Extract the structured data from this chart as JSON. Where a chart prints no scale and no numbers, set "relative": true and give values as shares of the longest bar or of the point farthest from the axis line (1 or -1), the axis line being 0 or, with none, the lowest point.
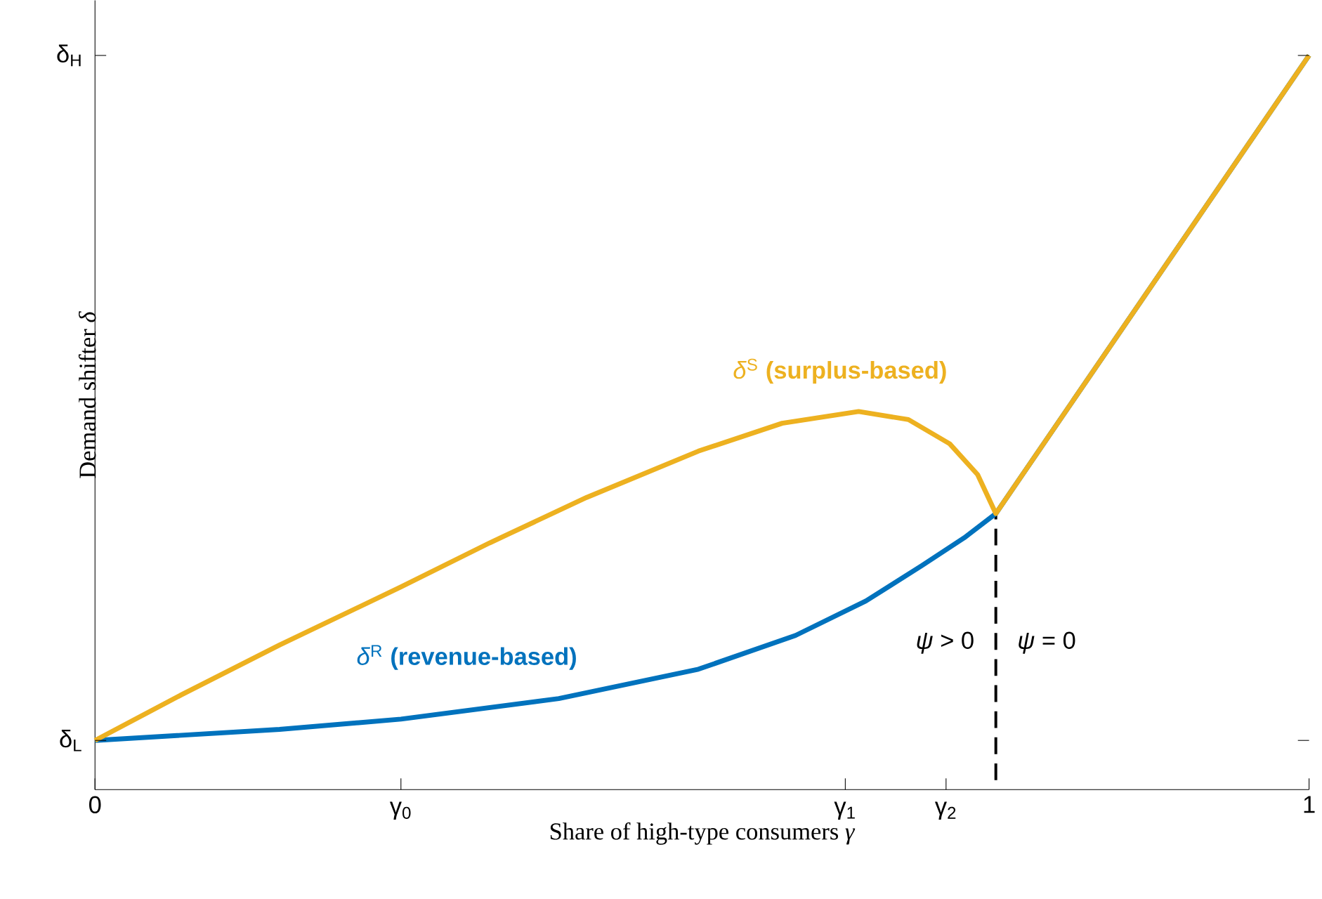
{
  "chart_data": {
    "type": "line",
    "relative": true,
    "xlabel": "Share of high-type consumers *γ*",
    "ylabel": "Demand shifter *δ*",
    "xlim": [
      0,
      1
    ],
    "xticks": [
      0,
      {
        "value": 0.252,
        "label": null
      },
      {
        "value": 0.618,
        "label": null
      },
      {
        "value": 0.701,
        "label": null
      },
      1
    ],
    "series": [
      {
        "name": "*δ*$^{R}$ **(revenue-based)**",
        "color": "#0072bd",
        "x": [
          0,
          0.152,
          0.252,
          0.382,
          0.497,
          0.577,
          0.635,
          0.681,
          0.716,
          0.742,
          1
        ],
        "values": [
          0.067,
          0.082,
          0.096,
          0.124,
          0.164,
          0.21,
          0.257,
          0.305,
          0.343,
          0.376,
          1
        ]
      },
      {
        "name": "*δ*$^{S}$ **(surplus-based)**",
        "color": "#edb120",
        "x": [
          0,
          0.071,
          0.152,
          0.252,
          0.325,
          0.405,
          0.497,
          0.566,
          0.629,
          0.67,
          0.704,
          0.727,
          0.742,
          1
        ],
        "values": [
          0.067,
          0.129,
          0.197,
          0.276,
          0.336,
          0.398,
          0.461,
          0.499,
          0.515,
          0.504,
          0.471,
          0.429,
          0.376,
          1
        ]
      }
    ],
    "ref_lines": [
      {
        "axis": "x",
        "value": 0.742,
        "line_style": "dashed",
        "color": "#000000"
      }
    ],
    "annotations": [
      "γ$_{0}$",
      "γ$_{1}$",
      "γ$_{2}$",
      "δ$_{L}$",
      "δ$_{H}$",
      "*ψ* > 0",
      "*ψ* = 0"
    ],
    "grid": false,
    "legend": false,
    "marker": "none",
    "line_style": "solid"
  }
}
